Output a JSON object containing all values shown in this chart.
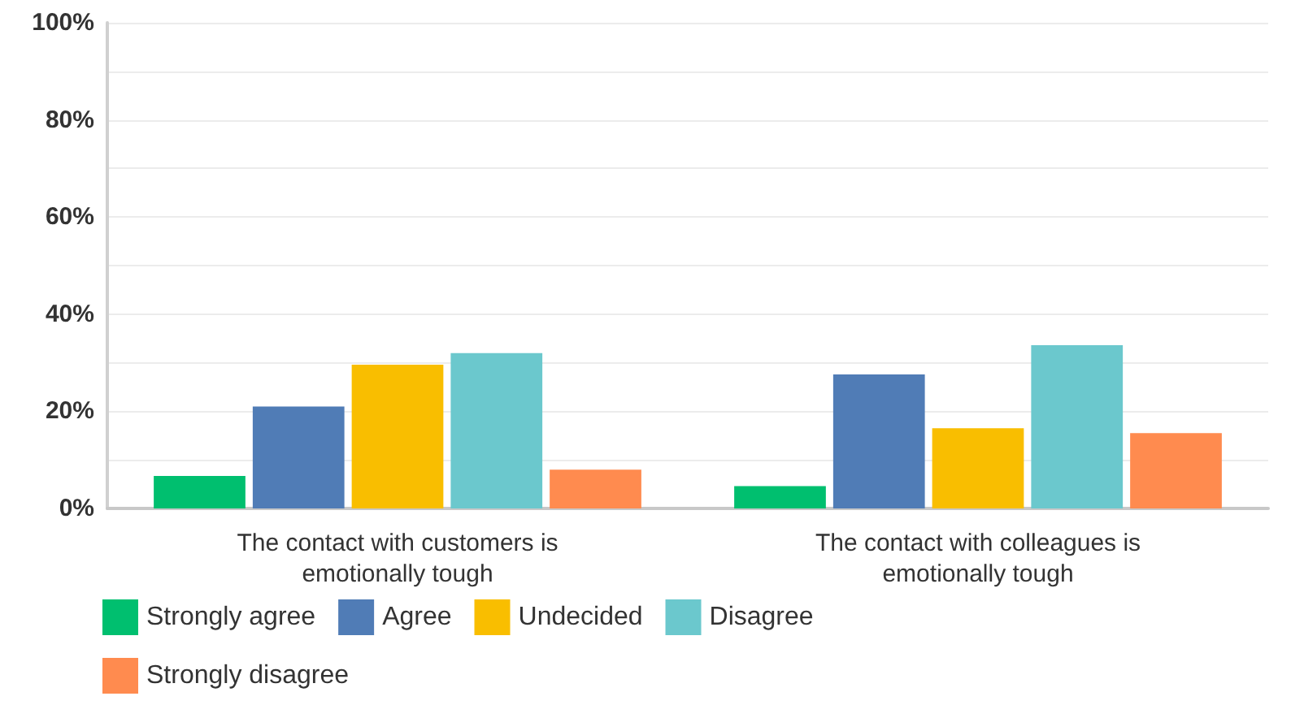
{
  "chart_data": {
    "type": "bar",
    "categories": [
      "The contact with customers is emotionally tough",
      "The contact with colleagues is emotionally tough"
    ],
    "series": [
      {
        "name": "Strongly agree",
        "color": "#00bf6f",
        "values": [
          6.7,
          4.6
        ]
      },
      {
        "name": "Agree",
        "color": "#507cb6",
        "values": [
          21,
          27.6
        ]
      },
      {
        "name": "Undecided",
        "color": "#f9be00",
        "values": [
          29.6,
          16.5
        ]
      },
      {
        "name": "Disagree",
        "color": "#6bc8cd",
        "values": [
          32,
          33.6
        ]
      },
      {
        "name": "Strongly disagree",
        "color": "#ff8b4f",
        "values": [
          8,
          15.5
        ]
      }
    ],
    "ylim": [
      0,
      100
    ],
    "yticks": [
      {
        "value": 0,
        "label": "0%"
      },
      {
        "value": 10,
        "label": null
      },
      {
        "value": 20,
        "label": "20%"
      },
      {
        "value": 30,
        "label": null
      },
      {
        "value": 40,
        "label": "40%"
      },
      {
        "value": 50,
        "label": null
      },
      {
        "value": 60,
        "label": "60%"
      },
      {
        "value": 70,
        "label": null
      },
      {
        "value": 80,
        "label": "80%"
      },
      {
        "value": 90,
        "label": null
      },
      {
        "value": 100,
        "label": "100%"
      }
    ],
    "grid": "y",
    "legend": "bottom left"
  }
}
